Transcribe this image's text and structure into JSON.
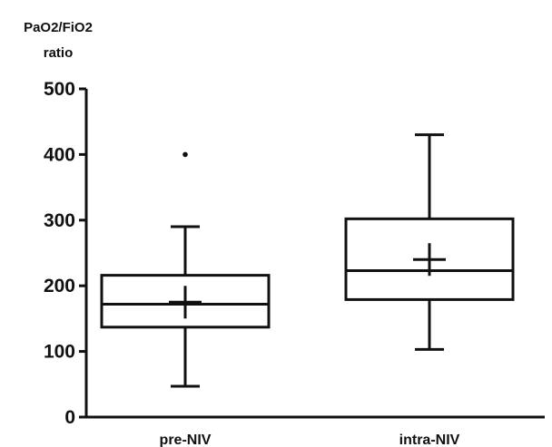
{
  "chart_data": {
    "type": "box",
    "ylabel_lines": [
      "PaO2/FiO2",
      "ratio"
    ],
    "ylim": [
      0,
      500
    ],
    "yticks": [
      0,
      100,
      200,
      300,
      400,
      500
    ],
    "categories": [
      "pre-NIV",
      "intra-NIV"
    ],
    "boxes": [
      {
        "category": "pre-NIV",
        "whisker_low": 47,
        "q1": 137,
        "median": 172,
        "q3": 216,
        "whisker_high": 290,
        "mean": 175,
        "outliers": [
          400
        ]
      },
      {
        "category": "intra-NIV",
        "whisker_low": 103,
        "q1": 179,
        "median": 223,
        "q3": 302,
        "whisker_high": 430,
        "mean": 240,
        "outliers": []
      }
    ],
    "grid": false,
    "line_color": "#111111"
  }
}
